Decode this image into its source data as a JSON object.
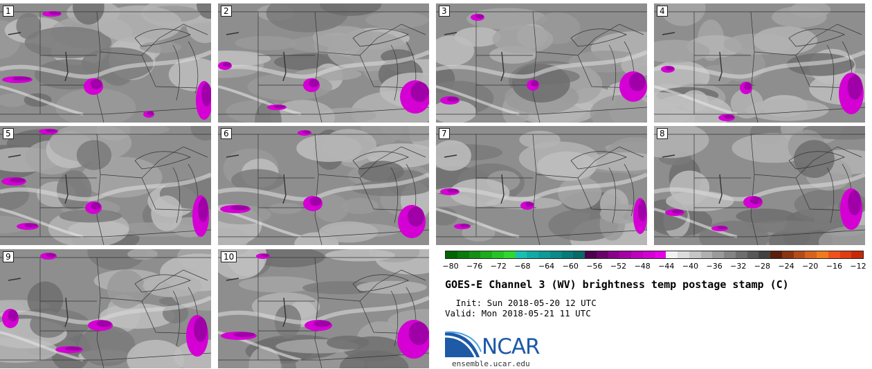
{
  "panels": [
    {
      "label": "1"
    },
    {
      "label": "2"
    },
    {
      "label": "3"
    },
    {
      "label": "4"
    },
    {
      "label": "5"
    },
    {
      "label": "6"
    },
    {
      "label": "7"
    },
    {
      "label": "8"
    },
    {
      "label": "9"
    },
    {
      "label": "10"
    }
  ],
  "colorbar": {
    "colors": [
      "#006400",
      "#0a7a0a",
      "#129012",
      "#1cab1c",
      "#24c424",
      "#2ed82e",
      "#16c0b0",
      "#12aaa6",
      "#0e9a98",
      "#0a8a88",
      "#087a78",
      "#066a68",
      "#4a004a",
      "#6a006a",
      "#8a008a",
      "#a400a4",
      "#bc00bc",
      "#d200d2",
      "#e600e6",
      "#f2f2f2",
      "#dcdcdc",
      "#c6c6c6",
      "#b0b0b0",
      "#9a9a9a",
      "#848484",
      "#6e6e6e",
      "#585858",
      "#424242",
      "#5a1e0a",
      "#8a3410",
      "#b44c18",
      "#d8621c",
      "#f07a1c",
      "#f0501c",
      "#e03c10",
      "#c82808"
    ],
    "ticks": [
      "−80",
      "−76",
      "−72",
      "−68",
      "−64",
      "−60",
      "−56",
      "−52",
      "−48",
      "−44",
      "−40",
      "−36",
      "−32",
      "−28",
      "−24",
      "−20",
      "−16",
      "−12"
    ]
  },
  "title": "GOES-E Channel 3 (WV) brightness temp postage stamp (C)",
  "init": " Init: Sun 2018-05-20 12 UTC",
  "valid": "Valid: Mon 2018-05-21 11 UTC",
  "logo_text": "NCAR",
  "url": "ensemble.ucar.edu"
}
